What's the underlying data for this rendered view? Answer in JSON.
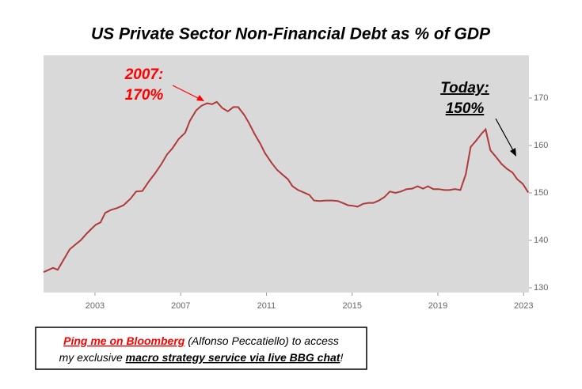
{
  "chart_data": {
    "type": "line",
    "title": "US Private Sector Non-Financial Debt as % of GDP",
    "x": [
      2000.6,
      2001.04,
      2001.26,
      2001.52,
      2001.82,
      2002.08,
      2002.33,
      2002.63,
      2002.85,
      2003.04,
      2003.26,
      2003.48,
      2003.74,
      2004.03,
      2004.33,
      2004.66,
      2004.92,
      2005.21,
      2005.51,
      2005.8,
      2006.1,
      2006.36,
      2006.61,
      2006.91,
      2007.21,
      2007.43,
      2007.72,
      2007.98,
      2008.24,
      2008.46,
      2008.68,
      2008.94,
      2009.2,
      2009.46,
      2009.68,
      2009.97,
      2010.19,
      2010.45,
      2010.71,
      2010.93,
      2011.23,
      2011.49,
      2011.74,
      2012,
      2012.22,
      2012.48,
      2012.74,
      2013,
      2013.22,
      2013.48,
      2013.77,
      2014.07,
      2014.33,
      2014.55,
      2014.81,
      2015.03,
      2015.25,
      2015.51,
      2015.77,
      2015.99,
      2016.25,
      2016.5,
      2016.76,
      2017.02,
      2017.28,
      2017.54,
      2017.8,
      2018.05,
      2018.31,
      2018.53,
      2018.79,
      2019.05,
      2019.31,
      2019.53,
      2019.79,
      2020.05,
      2020.3,
      2020.53,
      2020.78,
      2021.04,
      2021.23,
      2021.45,
      2021.71,
      2021.97,
      2022.22,
      2022.48,
      2022.7,
      2022.96,
      2023.22
    ],
    "series": [
      {
        "color": "#b03a3a",
        "values": [
          133.3,
          134.2,
          133.8,
          135.8,
          138.1,
          139.1,
          140,
          141.5,
          142.5,
          143.3,
          143.8,
          145.8,
          146.4,
          146.8,
          147.4,
          148.8,
          150.3,
          150.4,
          152.4,
          154.1,
          156.1,
          158.1,
          159.4,
          161.4,
          162.7,
          165.2,
          167.4,
          168.4,
          168.9,
          168.7,
          169.2,
          167.9,
          167.2,
          168.1,
          168.1,
          166.4,
          164.7,
          162.4,
          160.4,
          158.4,
          156.4,
          154.9,
          153.9,
          152.9,
          151.4,
          150.6,
          150.1,
          149.6,
          148.4,
          148.3,
          148.4,
          148.4,
          148.3,
          147.9,
          147.4,
          147.3,
          147.1,
          147.7,
          147.9,
          147.9,
          148.4,
          149.1,
          150.3,
          150,
          150.3,
          150.8,
          150.9,
          151.4,
          150.9,
          151.4,
          150.8,
          150.8,
          150.6,
          150.6,
          150.8,
          150.6,
          153.9,
          159.7,
          161,
          162.5,
          163.4,
          159,
          157.6,
          156.1,
          155.1,
          154.3,
          152.9,
          151.9,
          150.1
        ]
      }
    ],
    "xlim": [
      2000.6,
      2023.25
    ],
    "xticks": [
      2003,
      2007,
      2011,
      2015,
      2019,
      2023
    ],
    "ylim": [
      129,
      179
    ],
    "yticks": [
      130,
      140,
      150,
      160,
      170
    ],
    "annotations": [
      {
        "lines": [
          "2007:",
          "170%"
        ],
        "color": "#ff0000"
      },
      {
        "lines": [
          "Today:",
          "150%"
        ],
        "color": "#000000"
      }
    ],
    "footer": [
      [
        "Ping me on Bloomberg",
        " (Alfonso Peccatiello) to access"
      ],
      [
        "my exclusive ",
        "macro strategy service via live BBG chat",
        "!"
      ]
    ]
  }
}
